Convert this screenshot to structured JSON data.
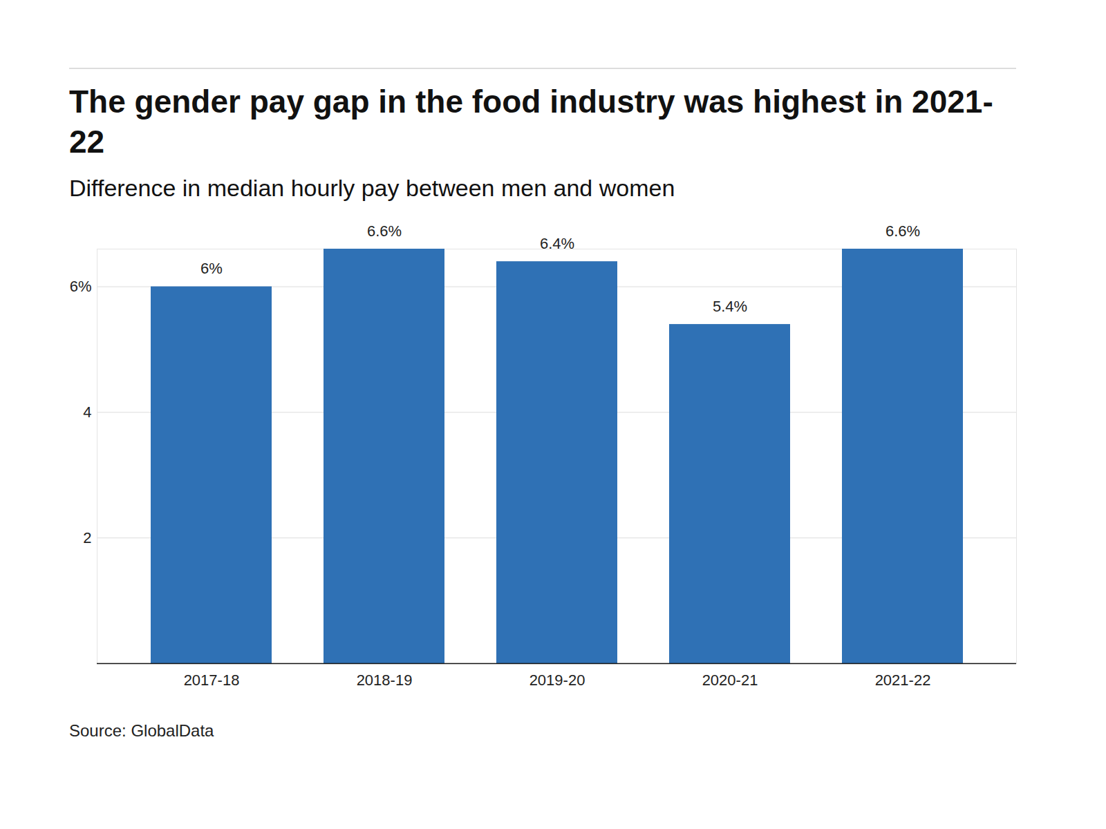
{
  "chart_data": {
    "type": "bar",
    "title": "The gender pay gap in the food industry was highest in 2021-22",
    "subtitle": "Difference in median hourly pay between men and women",
    "source": "Source: GlobalData",
    "categories": [
      "2017-18",
      "2018-19",
      "2019-20",
      "2020-21",
      "2021-22"
    ],
    "values": [
      6,
      6.6,
      6.4,
      5.4,
      6.6
    ],
    "value_labels": [
      "6%",
      "6.6%",
      "6.4%",
      "5.4%",
      "6.6%"
    ],
    "data_labels": true,
    "color": "#2f71b5",
    "ylim": [
      0,
      6.6
    ],
    "yticks": [
      2,
      4,
      {
        "value": 6,
        "label": "6%"
      }
    ],
    "grid": true
  }
}
